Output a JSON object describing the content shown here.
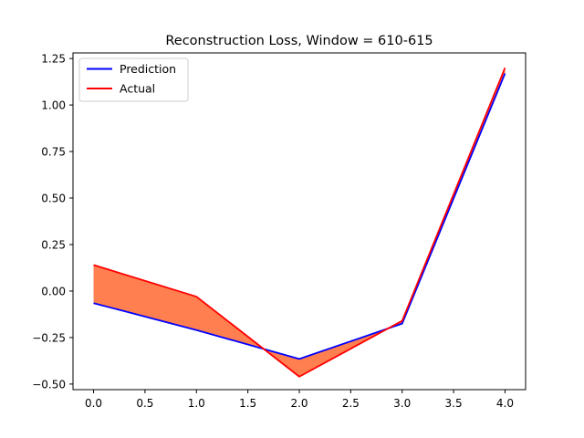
{
  "chart_data": {
    "type": "line",
    "title": "Reconstruction Loss, Window = 610-615",
    "xlabel": "",
    "ylabel": "",
    "x": [
      0,
      1,
      2,
      3,
      4
    ],
    "series": [
      {
        "name": "Prediction",
        "color": "#0000ff",
        "values": [
          -0.065,
          -0.21,
          -0.365,
          -0.175,
          1.17
        ]
      },
      {
        "name": "Actual",
        "color": "#ff0000",
        "values": [
          0.14,
          -0.03,
          -0.46,
          -0.16,
          1.2
        ]
      }
    ],
    "fill_between": {
      "color": "#ff7f50",
      "between": [
        "Prediction",
        "Actual"
      ]
    },
    "xlim": [
      -0.2,
      4.2
    ],
    "ylim": [
      -0.53,
      1.28
    ],
    "xticks": [
      {
        "value": 0,
        "label": "0.0"
      },
      {
        "value": 0.5,
        "label": "0.5"
      },
      {
        "value": 1,
        "label": "1.0"
      },
      {
        "value": 1.5,
        "label": "1.5"
      },
      {
        "value": 2,
        "label": "2.0"
      },
      {
        "value": 2.5,
        "label": "2.5"
      },
      {
        "value": 3,
        "label": "3.0"
      },
      {
        "value": 3.5,
        "label": "3.5"
      },
      {
        "value": 4,
        "label": "4.0"
      }
    ],
    "yticks": [
      {
        "value": -0.5,
        "label": "−0.50"
      },
      {
        "value": -0.25,
        "label": "−0.25"
      },
      {
        "value": 0,
        "label": "0.00"
      },
      {
        "value": 0.25,
        "label": "0.25"
      },
      {
        "value": 0.5,
        "label": "0.50"
      },
      {
        "value": 0.75,
        "label": "0.75"
      },
      {
        "value": 1,
        "label": "1.00"
      },
      {
        "value": 1.25,
        "label": "1.25"
      }
    ],
    "grid": false,
    "legend": {
      "position": "top-left",
      "entries": [
        "Prediction",
        "Actual"
      ]
    }
  }
}
